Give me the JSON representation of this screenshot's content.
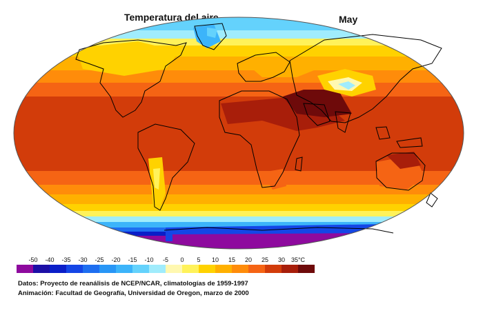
{
  "title": "Temperatura del aire",
  "month": "May",
  "legend": {
    "unit": "°C",
    "labels": [
      "-50",
      "-40",
      "-35",
      "-30",
      "-25",
      "-20",
      "-15",
      "-10",
      "-5",
      "0",
      "5",
      "10",
      "15",
      "20",
      "25",
      "30",
      "35°C"
    ],
    "colors": [
      "#8e0a9e",
      "#1c0fa6",
      "#0a1ec8",
      "#1446e6",
      "#1e6ef0",
      "#2896f6",
      "#3cb4fa",
      "#64d2fc",
      "#a0ecfc",
      "#fff8b0",
      "#fff25a",
      "#ffd200",
      "#ffb000",
      "#ff8c0a",
      "#f56414",
      "#d23c0a",
      "#a81e0a",
      "#6e0a0a"
    ]
  },
  "credits": {
    "data": "Datos: Proyecto de reanálisis de NCEP/NCAR, climatologías de 1959-1997",
    "animation": "Animación: Facultad de Geografía, Universidad de Oregon, marzo de 2000"
  }
}
